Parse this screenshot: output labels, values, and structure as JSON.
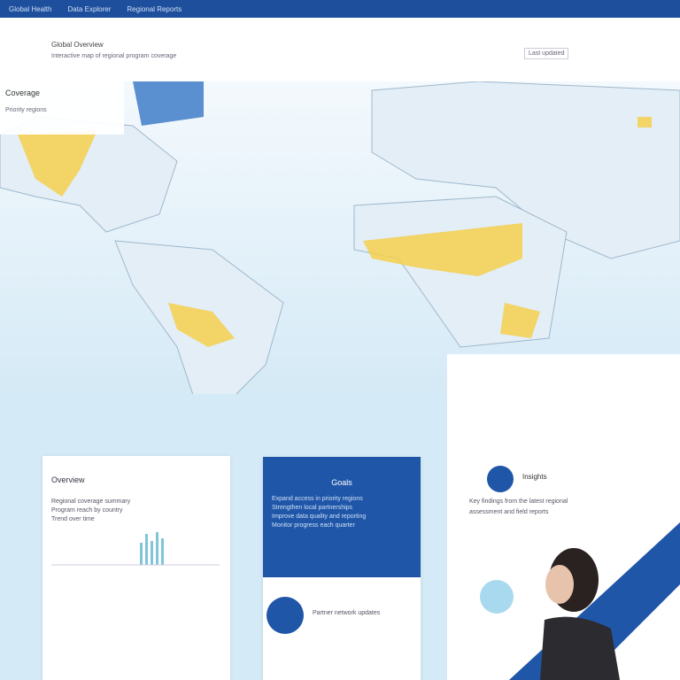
{
  "nav": {
    "items": [
      "Global Health",
      "Data Explorer",
      "Regional Reports"
    ]
  },
  "header": {
    "title": "Global Overview",
    "subtitle": "Interactive map of regional program coverage",
    "note": "Last updated"
  },
  "map": {
    "label": "Coverage",
    "legend": "Priority regions"
  },
  "cards": [
    {
      "title": "Overview",
      "lines": [
        "Regional coverage summary",
        "Program reach by country",
        "Trend over time"
      ]
    },
    {
      "title": "Goals",
      "lines": [
        "Expand access in priority regions",
        "Strengthen local partnerships",
        "Improve data quality and reporting",
        "Monitor progress each quarter"
      ],
      "footer": "Partner network updates"
    },
    {
      "title": "Insights",
      "lines": [
        "Key findings from the latest regional",
        "assessment and field reports"
      ]
    }
  ]
}
